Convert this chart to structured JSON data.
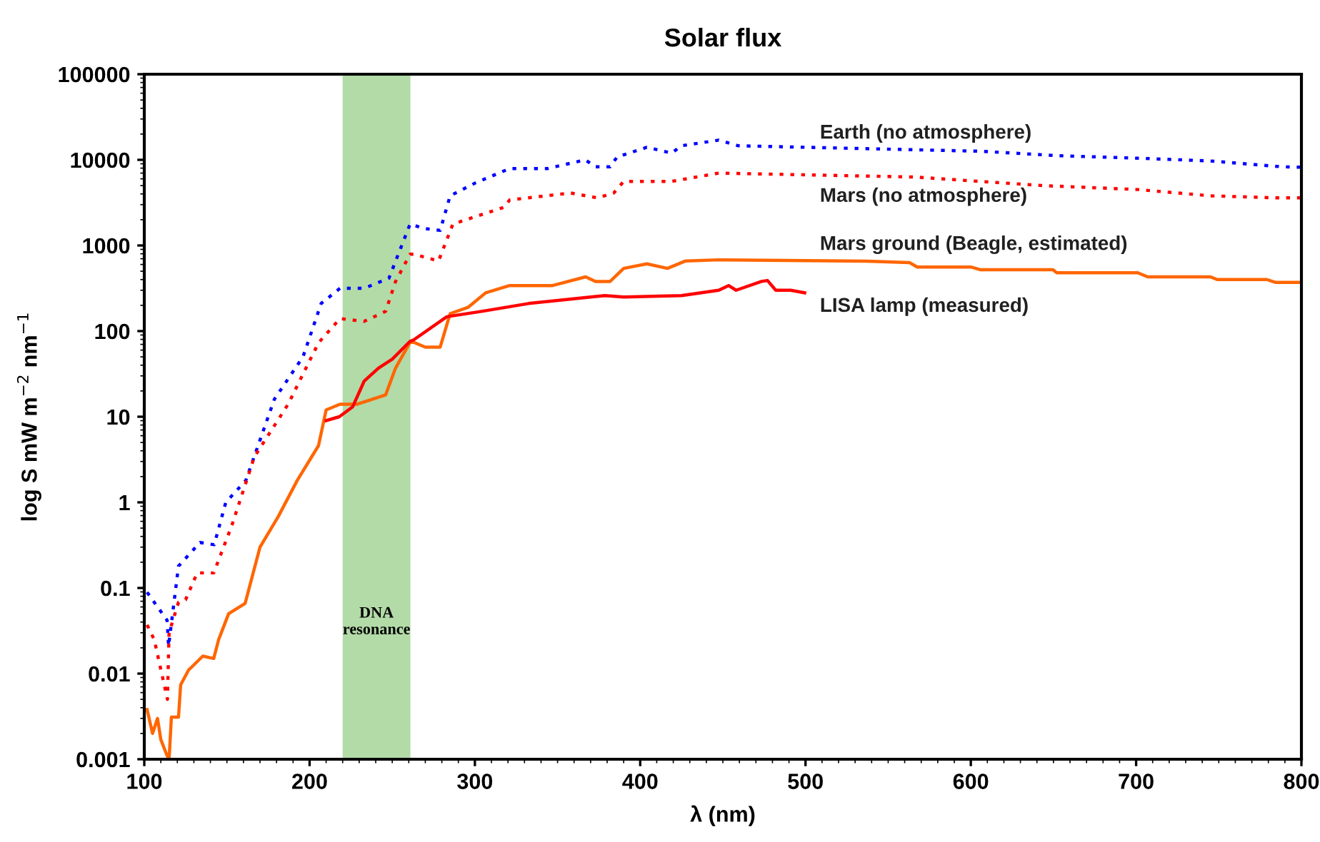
{
  "chart_data": {
    "type": "line",
    "title": "Solar flux",
    "xlabel": "λ (nm)",
    "ylabel": "log S mW m$^{−2}$ nm$^{−1}$",
    "log": "y",
    "grid": false,
    "legend": false,
    "marker": "none",
    "xlim": [
      100,
      800
    ],
    "xticks": [
      100,
      200,
      300,
      400,
      500,
      600,
      700,
      800
    ],
    "ylim": [
      0.001,
      100000
    ],
    "yticks": [
      0.001,
      0.01,
      0.1,
      1,
      10,
      100,
      1000,
      10000,
      100000
    ],
    "bands": [
      {
        "axis": "x",
        "from": 220,
        "to": 261,
        "label": "DNA\nresonance",
        "color": "#b3dba8"
      }
    ],
    "series": [
      {
        "name": "Earth (no atmosphere)",
        "color": "#0000ff",
        "line_style": "dotted",
        "x": [
          101.7,
          113.8,
          114.7,
          120.7,
          133.7,
          142.3,
          149.3,
          161.4,
          178.7,
          196,
          207,
          218.4,
          233,
          248,
          260.8,
          269,
          279,
          285,
          300.5,
          321,
          343.7,
          366.8,
          373,
          381.8,
          386,
          404,
          419,
          425,
          447.5,
          459.5,
          606,
          652,
          704,
          745,
          788,
          800
        ],
        "values": [
          0.089,
          0.042,
          0.021,
          0.18,
          0.34,
          0.32,
          1.0,
          1.8,
          16,
          50,
          210,
          316,
          316,
          415,
          1780,
          1580,
          1500,
          3800,
          5400,
          7900,
          7900,
          10000,
          8300,
          8300,
          10800,
          14000,
          12000,
          14600,
          17000,
          14600,
          12600,
          11200,
          10400,
          9700,
          8300,
          8200
        ]
      },
      {
        "name": "Mars (no atmosphere)",
        "color": "#ff0000",
        "line_style": "dotted",
        "x": [
          101.7,
          106,
          114,
          115,
          120.7,
          125,
          132,
          142,
          153,
          166.6,
          187,
          205.4,
          218.4,
          233,
          246,
          252,
          260.8,
          263,
          278,
          286.7,
          317.8,
          321,
          358,
          374,
          384,
          390,
          419,
          447.5,
          566,
          644,
          701,
          745,
          784.5,
          800
        ],
        "values": [
          0.037,
          0.025,
          0.005,
          0.03,
          0.068,
          0.073,
          0.15,
          0.15,
          0.54,
          3.4,
          14,
          73,
          140,
          130,
          170,
          380,
          790,
          790,
          660,
          1780,
          2800,
          3400,
          4100,
          3600,
          4100,
          5600,
          5600,
          7000,
          6300,
          5000,
          4500,
          3800,
          3600,
          3600
        ]
      },
      {
        "name": "Mars ground (Beagle, estimated)",
        "color": "#ff6600",
        "line_style": "solid",
        "x": [
          101.7,
          105,
          108,
          110,
          113.8,
          115,
          116.4,
          120.7,
          122,
          126.8,
          135.4,
          142,
          145,
          151,
          161,
          170,
          181,
          192.5,
          205.4,
          210,
          218.4,
          228.8,
          246,
          252,
          260.8,
          263,
          270,
          279,
          285,
          296,
          306.5,
          321,
          347,
          367,
          373,
          381.8,
          390,
          404,
          416.5,
          427.5,
          447.5,
          537,
          563,
          567.6,
          600,
          606,
          649.7,
          652,
          701,
          707,
          745,
          749,
          779,
          784.5,
          800
        ],
        "values": [
          0.0038,
          0.002,
          0.003,
          0.0017,
          0.0011,
          0.001,
          0.0031,
          0.0031,
          0.0074,
          0.011,
          0.016,
          0.015,
          0.025,
          0.05,
          0.066,
          0.3,
          0.68,
          1.8,
          4.6,
          12,
          14,
          14,
          18,
          37,
          74,
          74,
          65,
          65,
          160,
          190,
          280,
          340,
          340,
          430,
          380,
          380,
          540,
          610,
          540,
          660,
          680,
          655,
          630,
          560,
          560,
          520,
          520,
          480,
          480,
          430,
          430,
          400,
          400,
          370,
          370
        ]
      },
      {
        "name": "LISA lamp (measured)",
        "color": "#ff0000",
        "line_style": "solid",
        "x": [
          210,
          218,
          226,
          233,
          241.7,
          250,
          260.8,
          263,
          283,
          304,
          332.5,
          370,
          378.6,
          390,
          425,
          447.5,
          453.5,
          458,
          473.4,
          477,
          482,
          491,
          499.5
        ],
        "values": [
          9,
          10,
          13,
          26,
          37,
          47,
          76,
          79,
          147,
          170,
          210,
          250,
          260,
          250,
          260,
          300,
          340,
          300,
          380,
          390,
          300,
          300,
          280
        ]
      }
    ]
  }
}
